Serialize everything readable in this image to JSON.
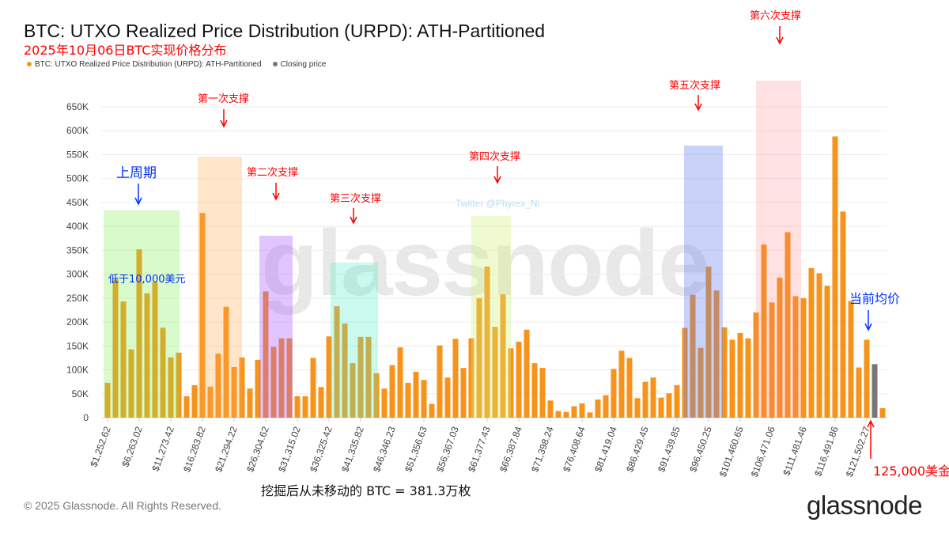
{
  "header": {
    "title": "BTC: UTXO Realized Price Distribution (URPD): ATH-Partitioned",
    "subtitle": "2025年10月06日BTC实现价格分布",
    "legend": [
      {
        "label": "BTC: UTXO Realized Price Distribution (URPD): ATH-Partitioned",
        "color": "#f7931a"
      },
      {
        "label": "Closing price",
        "color": "#777777"
      }
    ]
  },
  "watermark": "glassnode",
  "credit": "Twitter @Phyrex_Ni",
  "footer": {
    "copyright": "© 2025 Glassnode. All Rights Reserved.",
    "logo": "glassnode"
  },
  "annotations": {
    "prev_cycle": "上周期",
    "below_10k": "低于10,000美元",
    "support1": "第一次支撑",
    "support2": "第二次支撑",
    "support3": "第三次支撑",
    "support4": "第四次支撑",
    "support5": "第五次支撑",
    "support6": "第六次支撑",
    "current_avg": "当前均价",
    "price_125k": "125,000美金",
    "unmoved": "挖掘后从未移动的 BTC = 381.3万枚"
  },
  "chart_data": {
    "type": "bar",
    "title": "BTC: UTXO Realized Price Distribution (URPD): ATH-Partitioned",
    "xlabel": "",
    "ylabel": "",
    "ylim": [
      0,
      650000
    ],
    "yticks": [
      "0",
      "50K",
      "100K",
      "150K",
      "200K",
      "250K",
      "300K",
      "350K",
      "400K",
      "450K",
      "500K",
      "550K",
      "600K",
      "650K"
    ],
    "xtick_every": 4,
    "xtick_labels": [
      "$1,252.62",
      "$6,263.02",
      "$11,273.42",
      "$16,283.82",
      "$21,294.22",
      "$26,304.62",
      "$31,315.02",
      "$36,325.42",
      "$41,335.82",
      "$46,346.23",
      "$51,356.63",
      "$56,367.03",
      "$61,377.43",
      "$66,387.84",
      "$71,398.24",
      "$76,408.64",
      "$81,419.04",
      "$86,429.45",
      "$91,439.85",
      "$96,450.25",
      "$101,460.65",
      "$106,471.06",
      "$111,481.46",
      "$116,491.86",
      "$121,502.27"
    ],
    "values": [
      73,
      290,
      243,
      143,
      352,
      260,
      283,
      188,
      126,
      136,
      45,
      68,
      428,
      65,
      134,
      232,
      106,
      126,
      61,
      121,
      264,
      148,
      166,
      166,
      45,
      45,
      125,
      64,
      170,
      233,
      197,
      114,
      169,
      169,
      93,
      61,
      110,
      147,
      73,
      96,
      79,
      29,
      151,
      84,
      165,
      104,
      166,
      250,
      316,
      190,
      258,
      145,
      159,
      184,
      114,
      104,
      36,
      14,
      12,
      24,
      30,
      11,
      38,
      47,
      102,
      140,
      125,
      41,
      75,
      84,
      42,
      51,
      68,
      188,
      257,
      146,
      316,
      266,
      189,
      163,
      177,
      166,
      220,
      362,
      241,
      293,
      388,
      254,
      250,
      313,
      302,
      276,
      588,
      431,
      244,
      105,
      163,
      112,
      20
    ],
    "value_unit": "thousand BTC",
    "closing_price_index": 97,
    "legend_position": "top-left",
    "grid": true
  },
  "colors": {
    "bar": "#f7931a",
    "closing": "#777777",
    "annotation_red": "#ff0000",
    "annotation_blue": "#0033ff"
  }
}
